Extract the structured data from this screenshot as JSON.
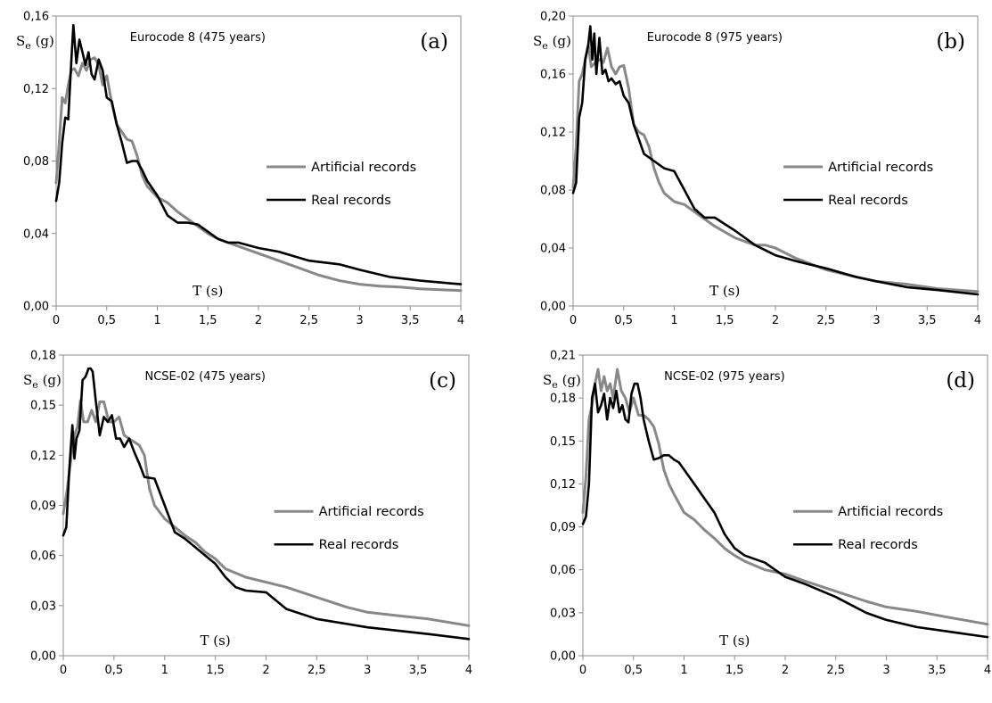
{
  "chart_data": [
    {
      "type": "line",
      "title": "Eurocode 8 (475 years)",
      "panel_label": "(a)",
      "ylabel_main": "S",
      "ylabel_sub": "e",
      "ylabel_unit": " (g)",
      "xlabel": "T (s)",
      "xlim": [
        0,
        4
      ],
      "ylim": [
        0,
        0.16
      ],
      "xticks": [
        0,
        0.5,
        1,
        1.5,
        2,
        2.5,
        3,
        3.5,
        4
      ],
      "xtick_labels": [
        "0",
        "0,5",
        "1",
        "1,5",
        "2",
        "2,5",
        "3",
        "3,5",
        "4"
      ],
      "yticks": [
        0,
        0.04,
        0.08,
        0.12,
        0.16
      ],
      "ytick_labels": [
        "0,00",
        "0,04",
        "0,08",
        "0,12",
        "0,16"
      ],
      "legend_position": "middle-right",
      "series": [
        {
          "name": "Artificial records",
          "color": "#888888",
          "x": [
            0,
            0.03,
            0.06,
            0.09,
            0.12,
            0.15,
            0.18,
            0.22,
            0.26,
            0.3,
            0.34,
            0.38,
            0.42,
            0.46,
            0.5,
            0.55,
            0.6,
            0.65,
            0.7,
            0.75,
            0.8,
            0.85,
            0.9,
            1,
            1.1,
            1.2,
            1.3,
            1.4,
            1.5,
            1.6,
            1.7,
            1.8,
            2,
            2.2,
            2.4,
            2.6,
            2.8,
            3,
            3.2,
            3.4,
            3.6,
            3.8,
            4
          ],
          "y": [
            0.068,
            0.09,
            0.115,
            0.112,
            0.122,
            0.13,
            0.131,
            0.127,
            0.134,
            0.13,
            0.136,
            0.137,
            0.133,
            0.122,
            0.127,
            0.112,
            0.1,
            0.096,
            0.092,
            0.091,
            0.083,
            0.072,
            0.066,
            0.06,
            0.057,
            0.052,
            0.048,
            0.044,
            0.04,
            0.037,
            0.035,
            0.033,
            0.029,
            0.025,
            0.021,
            0.017,
            0.014,
            0.012,
            0.011,
            0.0105,
            0.0095,
            0.009,
            0.0085
          ]
        },
        {
          "name": "Real records",
          "color": "#000000",
          "x": [
            0,
            0.03,
            0.06,
            0.09,
            0.12,
            0.15,
            0.17,
            0.2,
            0.23,
            0.26,
            0.29,
            0.32,
            0.35,
            0.38,
            0.42,
            0.46,
            0.5,
            0.55,
            0.6,
            0.65,
            0.7,
            0.75,
            0.8,
            0.85,
            0.9,
            1,
            1.1,
            1.2,
            1.3,
            1.4,
            1.5,
            1.6,
            1.7,
            1.8,
            2,
            2.2,
            2.5,
            2.8,
            3,
            3.3,
            3.6,
            4
          ],
          "y": [
            0.058,
            0.068,
            0.09,
            0.104,
            0.103,
            0.135,
            0.155,
            0.134,
            0.147,
            0.14,
            0.133,
            0.14,
            0.128,
            0.125,
            0.136,
            0.13,
            0.115,
            0.113,
            0.1,
            0.09,
            0.079,
            0.08,
            0.08,
            0.075,
            0.069,
            0.061,
            0.05,
            0.046,
            0.046,
            0.045,
            0.041,
            0.037,
            0.035,
            0.035,
            0.032,
            0.03,
            0.025,
            0.023,
            0.02,
            0.016,
            0.014,
            0.012
          ]
        }
      ]
    },
    {
      "type": "line",
      "title": "Eurocode 8 (975 years)",
      "panel_label": "(b)",
      "ylabel_main": "S",
      "ylabel_sub": "e",
      "ylabel_unit": " (g)",
      "xlabel": "T (s)",
      "xlim": [
        0,
        4
      ],
      "ylim": [
        0,
        0.2
      ],
      "xticks": [
        0,
        0.5,
        1,
        1.5,
        2,
        2.5,
        3,
        3.5,
        4
      ],
      "xtick_labels": [
        "0",
        "0,5",
        "1",
        "1,5",
        "2",
        "2,5",
        "3",
        "3,5",
        "4"
      ],
      "yticks": [
        0,
        0.04,
        0.08,
        0.12,
        0.16,
        0.2
      ],
      "ytick_labels": [
        "0,00",
        "0,04",
        "0,08",
        "0,12",
        "0,16",
        "0,20"
      ],
      "legend_position": "middle-right",
      "series": [
        {
          "name": "Artificial records",
          "color": "#888888",
          "x": [
            0,
            0.03,
            0.06,
            0.09,
            0.12,
            0.15,
            0.18,
            0.22,
            0.26,
            0.3,
            0.34,
            0.38,
            0.42,
            0.46,
            0.5,
            0.55,
            0.6,
            0.65,
            0.7,
            0.75,
            0.8,
            0.85,
            0.9,
            1,
            1.1,
            1.2,
            1.4,
            1.6,
            1.8,
            1.9,
            2,
            2.2,
            2.5,
            2.8,
            3,
            3.3,
            3.6,
            4
          ],
          "y": [
            0.082,
            0.11,
            0.155,
            0.16,
            0.17,
            0.18,
            0.165,
            0.168,
            0.17,
            0.168,
            0.178,
            0.165,
            0.16,
            0.165,
            0.166,
            0.15,
            0.125,
            0.12,
            0.118,
            0.11,
            0.095,
            0.085,
            0.078,
            0.072,
            0.07,
            0.065,
            0.055,
            0.047,
            0.042,
            0.042,
            0.04,
            0.033,
            0.025,
            0.02,
            0.017,
            0.015,
            0.012,
            0.01
          ]
        },
        {
          "name": "Real records",
          "color": "#000000",
          "x": [
            0,
            0.03,
            0.06,
            0.09,
            0.12,
            0.15,
            0.17,
            0.19,
            0.21,
            0.23,
            0.26,
            0.29,
            0.32,
            0.35,
            0.38,
            0.42,
            0.46,
            0.5,
            0.55,
            0.6,
            0.65,
            0.7,
            0.8,
            0.9,
            1,
            1.1,
            1.2,
            1.3,
            1.4,
            1.6,
            1.8,
            2,
            2.2,
            2.5,
            2.8,
            3,
            3.3,
            3.6,
            4
          ],
          "y": [
            0.078,
            0.085,
            0.13,
            0.14,
            0.17,
            0.18,
            0.193,
            0.17,
            0.188,
            0.16,
            0.185,
            0.16,
            0.163,
            0.155,
            0.157,
            0.153,
            0.155,
            0.145,
            0.14,
            0.125,
            0.115,
            0.105,
            0.1,
            0.095,
            0.093,
            0.08,
            0.067,
            0.061,
            0.061,
            0.052,
            0.042,
            0.035,
            0.031,
            0.026,
            0.02,
            0.017,
            0.013,
            0.011,
            0.008
          ]
        }
      ]
    },
    {
      "type": "line",
      "title": "NCSE-02 (475 years)",
      "panel_label": "(c)",
      "ylabel_main": "S",
      "ylabel_sub": "e",
      "ylabel_unit": " (g)",
      "xlabel": "T (s)",
      "xlim": [
        0,
        4
      ],
      "ylim": [
        0,
        0.18
      ],
      "xticks": [
        0,
        0.5,
        1,
        1.5,
        2,
        2.5,
        3,
        3.5,
        4
      ],
      "xtick_labels": [
        "0",
        "0,5",
        "1",
        "1,5",
        "2",
        "2,5",
        "3",
        "3,5",
        "4"
      ],
      "yticks": [
        0,
        0.03,
        0.06,
        0.09,
        0.12,
        0.15,
        0.18
      ],
      "ytick_labels": [
        "0,00",
        "0,03",
        "0,06",
        "0,09",
        "0,12",
        "0,15",
        "0,18"
      ],
      "legend_position": "middle-right",
      "series": [
        {
          "name": "Artificial records",
          "color": "#888888",
          "x": [
            0,
            0.04,
            0.08,
            0.11,
            0.14,
            0.17,
            0.2,
            0.24,
            0.28,
            0.32,
            0.36,
            0.4,
            0.45,
            0.5,
            0.55,
            0.6,
            0.65,
            0.7,
            0.75,
            0.8,
            0.85,
            0.9,
            1,
            1.1,
            1.2,
            1.3,
            1.4,
            1.5,
            1.6,
            1.8,
            2,
            2.2,
            2.5,
            2.8,
            3,
            3.3,
            3.6,
            4
          ],
          "y": [
            0.085,
            0.1,
            0.12,
            0.132,
            0.137,
            0.153,
            0.14,
            0.14,
            0.147,
            0.14,
            0.152,
            0.152,
            0.14,
            0.14,
            0.143,
            0.132,
            0.13,
            0.128,
            0.126,
            0.12,
            0.1,
            0.09,
            0.082,
            0.077,
            0.072,
            0.068,
            0.062,
            0.058,
            0.052,
            0.047,
            0.044,
            0.041,
            0.035,
            0.029,
            0.026,
            0.024,
            0.022,
            0.018
          ]
        },
        {
          "name": "Real records",
          "color": "#000000",
          "x": [
            0,
            0.03,
            0.06,
            0.09,
            0.11,
            0.13,
            0.16,
            0.19,
            0.22,
            0.25,
            0.27,
            0.29,
            0.32,
            0.36,
            0.4,
            0.44,
            0.48,
            0.52,
            0.56,
            0.6,
            0.65,
            0.7,
            0.75,
            0.8,
            0.9,
            1,
            1.1,
            1.2,
            1.3,
            1.4,
            1.5,
            1.6,
            1.7,
            1.8,
            2,
            2.2,
            2.5,
            2.8,
            3,
            3.3,
            3.6,
            4
          ],
          "y": [
            0.072,
            0.077,
            0.112,
            0.138,
            0.118,
            0.13,
            0.135,
            0.165,
            0.167,
            0.172,
            0.172,
            0.17,
            0.153,
            0.132,
            0.143,
            0.14,
            0.144,
            0.13,
            0.13,
            0.125,
            0.13,
            0.122,
            0.115,
            0.107,
            0.106,
            0.09,
            0.074,
            0.07,
            0.065,
            0.06,
            0.055,
            0.047,
            0.041,
            0.039,
            0.038,
            0.028,
            0.022,
            0.019,
            0.017,
            0.015,
            0.013,
            0.01
          ]
        }
      ]
    },
    {
      "type": "line",
      "title": "NCSE-02 (975 years)",
      "panel_label": "(d)",
      "ylabel_main": "S",
      "ylabel_sub": "e",
      "ylabel_unit": " (g)",
      "xlabel": "T (s)",
      "xlim": [
        0,
        4
      ],
      "ylim": [
        0,
        0.21
      ],
      "xticks": [
        0,
        0.5,
        1,
        1.5,
        2,
        2.5,
        3,
        3.5,
        4
      ],
      "xtick_labels": [
        "0",
        "0,5",
        "1",
        "1,5",
        "2",
        "2,5",
        "3",
        "3,5",
        "4"
      ],
      "yticks": [
        0,
        0.03,
        0.06,
        0.09,
        0.12,
        0.15,
        0.18,
        0.21
      ],
      "ytick_labels": [
        "0,00",
        "0,03",
        "0,06",
        "0,09",
        "0,12",
        "0,15",
        "0,18",
        "0,21"
      ],
      "legend_position": "middle-right",
      "series": [
        {
          "name": "Artificial records",
          "color": "#888888",
          "x": [
            0,
            0.03,
            0.06,
            0.09,
            0.12,
            0.15,
            0.18,
            0.21,
            0.24,
            0.27,
            0.3,
            0.34,
            0.38,
            0.42,
            0.46,
            0.5,
            0.55,
            0.6,
            0.65,
            0.7,
            0.75,
            0.8,
            0.85,
            0.9,
            1,
            1.1,
            1.2,
            1.3,
            1.4,
            1.5,
            1.6,
            1.8,
            2,
            2.2,
            2.5,
            2.8,
            3,
            3.3,
            3.6,
            4
          ],
          "y": [
            0.1,
            0.125,
            0.165,
            0.175,
            0.19,
            0.2,
            0.185,
            0.195,
            0.185,
            0.19,
            0.18,
            0.2,
            0.185,
            0.18,
            0.17,
            0.18,
            0.168,
            0.168,
            0.165,
            0.16,
            0.148,
            0.13,
            0.12,
            0.113,
            0.1,
            0.095,
            0.088,
            0.082,
            0.075,
            0.07,
            0.066,
            0.06,
            0.057,
            0.052,
            0.045,
            0.038,
            0.034,
            0.031,
            0.027,
            0.022
          ]
        },
        {
          "name": "Real records",
          "color": "#000000",
          "x": [
            0,
            0.03,
            0.06,
            0.09,
            0.12,
            0.15,
            0.18,
            0.21,
            0.24,
            0.27,
            0.3,
            0.33,
            0.36,
            0.39,
            0.42,
            0.45,
            0.48,
            0.51,
            0.54,
            0.57,
            0.6,
            0.65,
            0.7,
            0.75,
            0.8,
            0.85,
            0.9,
            0.95,
            1,
            1.1,
            1.2,
            1.3,
            1.4,
            1.5,
            1.6,
            1.8,
            2,
            2.2,
            2.5,
            2.8,
            3,
            3.3,
            3.6,
            4
          ],
          "y": [
            0.092,
            0.097,
            0.12,
            0.18,
            0.19,
            0.17,
            0.175,
            0.183,
            0.165,
            0.18,
            0.173,
            0.185,
            0.17,
            0.175,
            0.165,
            0.163,
            0.183,
            0.19,
            0.19,
            0.18,
            0.165,
            0.15,
            0.137,
            0.138,
            0.14,
            0.14,
            0.137,
            0.135,
            0.13,
            0.12,
            0.11,
            0.1,
            0.085,
            0.075,
            0.07,
            0.065,
            0.055,
            0.05,
            0.041,
            0.03,
            0.025,
            0.02,
            0.017,
            0.013
          ]
        }
      ]
    }
  ]
}
